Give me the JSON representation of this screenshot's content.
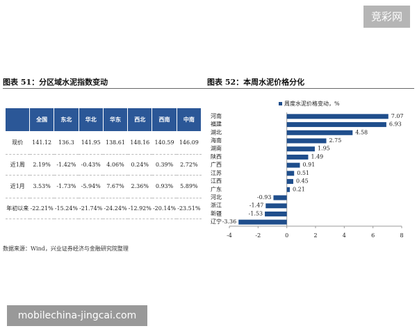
{
  "watermark": "竞彩网",
  "left_heading": "图表 51：分区域水泥指数变动",
  "right_heading": "图表 52：本周水泥价格分化",
  "table": {
    "columns": [
      "全国",
      "东北",
      "华北",
      "华东",
      "西北",
      "西南",
      "中南"
    ],
    "rows": [
      {
        "label": "现价",
        "values": [
          "141.12",
          "136.3",
          "141.95",
          "138.61",
          "148.16",
          "140.59",
          "146.09"
        ]
      },
      {
        "label": "近1周",
        "values": [
          "2.19%",
          "-1.42%",
          "-0.43%",
          "4.06%",
          "0.24%",
          "0.39%",
          "2.72%"
        ]
      },
      {
        "label": "近1月",
        "values": [
          "3.53%",
          "-1.73%",
          "-5.94%",
          "7.67%",
          "2.36%",
          "0.93%",
          "5.89%"
        ]
      },
      {
        "label": "年初以来",
        "values": [
          "-22.21%",
          "-15.24%",
          "-21.74%",
          "-24.24%",
          "-12.92%",
          "-20.14%",
          "-23.51%"
        ]
      }
    ]
  },
  "chart_data": {
    "type": "bar",
    "orientation": "horizontal",
    "categories": [
      "河南",
      "福建",
      "湖北",
      "海南",
      "湖南",
      "陕西",
      "广西",
      "江苏",
      "江西",
      "广东",
      "河北",
      "浙江",
      "新疆",
      "辽宁"
    ],
    "series": [
      {
        "name": "周度水泥价格变动，%",
        "color": "#1f4e8c",
        "values": [
          7.07,
          6.93,
          4.58,
          2.75,
          1.95,
          1.49,
          0.91,
          0.51,
          0.45,
          0.21,
          -0.93,
          -1.47,
          -1.53,
          -3.36
        ]
      }
    ],
    "xlim": [
      -4,
      8
    ],
    "xticks": [
      -4,
      -2,
      0,
      2,
      4,
      6,
      8
    ],
    "legend": "top"
  },
  "source": "数据来源：Wind，兴业证券经济与金融研究院整理",
  "footer_watermark": "mobilechina-jingcai.com"
}
